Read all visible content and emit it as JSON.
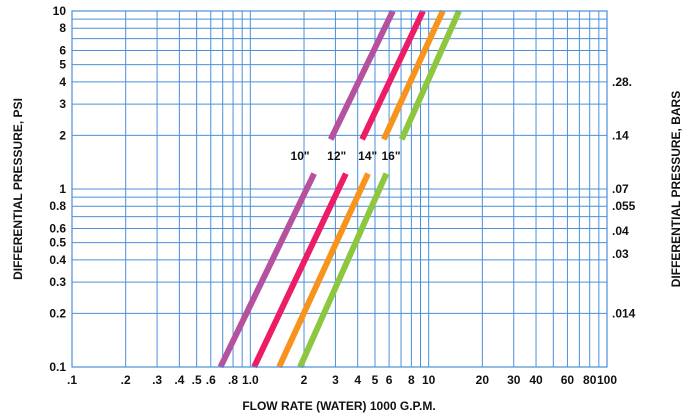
{
  "chart_data": {
    "type": "line",
    "title": "",
    "xlabel": "FLOW RATE (WATER) 1000 G.P.M.",
    "ylabel": "DIFFERENTIAL PRESSURE, PSI",
    "ylabel_right": "DIFFERENTIAL PRESSURE, BARS",
    "x_scale": "log",
    "y_scale": "log",
    "xlim": [
      0.1,
      100
    ],
    "ylim": [
      0.1,
      10
    ],
    "grid": true,
    "x_ticks": [
      {
        "value": 0.1,
        "label": ".1"
      },
      {
        "value": 0.2,
        "label": ".2"
      },
      {
        "value": 0.3,
        "label": ".3"
      },
      {
        "value": 0.4,
        "label": ".4"
      },
      {
        "value": 0.5,
        "label": ".5"
      },
      {
        "value": 0.6,
        "label": ".6"
      },
      {
        "value": 0.8,
        "label": ".8"
      },
      {
        "value": 1.0,
        "label": "1.0"
      },
      {
        "value": 2,
        "label": "2"
      },
      {
        "value": 3,
        "label": "3"
      },
      {
        "value": 4,
        "label": "4"
      },
      {
        "value": 5,
        "label": "5"
      },
      {
        "value": 6,
        "label": "6"
      },
      {
        "value": 8,
        "label": "8"
      },
      {
        "value": 10,
        "label": "10"
      },
      {
        "value": 20,
        "label": "20"
      },
      {
        "value": 30,
        "label": "30"
      },
      {
        "value": 40,
        "label": "40"
      },
      {
        "value": 60,
        "label": "60"
      },
      {
        "value": 80,
        "label": "80"
      },
      {
        "value": 100,
        "label": "100"
      }
    ],
    "y_ticks": [
      {
        "value": 0.1,
        "label": "0.1"
      },
      {
        "value": 0.2,
        "label": "0.2"
      },
      {
        "value": 0.3,
        "label": "0.3"
      },
      {
        "value": 0.4,
        "label": "0.4"
      },
      {
        "value": 0.5,
        "label": "0.5"
      },
      {
        "value": 0.6,
        "label": "0.6"
      },
      {
        "value": 0.8,
        "label": "0.8"
      },
      {
        "value": 1,
        "label": "1"
      },
      {
        "value": 2,
        "label": "2"
      },
      {
        "value": 3,
        "label": "3"
      },
      {
        "value": 4,
        "label": "4"
      },
      {
        "value": 5,
        "label": "5"
      },
      {
        "value": 6,
        "label": "6"
      },
      {
        "value": 8,
        "label": "8"
      },
      {
        "value": 10,
        "label": "10"
      }
    ],
    "right_ticks": [
      {
        "value": 4,
        "label": ".28."
      },
      {
        "value": 2,
        "label": ".14"
      },
      {
        "value": 1,
        "label": ".07"
      },
      {
        "value": 0.8,
        "label": ".055"
      },
      {
        "value": 0.58,
        "label": ".04"
      },
      {
        "value": 0.43,
        "label": ".03"
      },
      {
        "value": 0.2,
        "label": ".014"
      }
    ],
    "grid_x_values": [
      0.1,
      0.2,
      0.3,
      0.4,
      0.5,
      0.6,
      0.7,
      0.8,
      0.9,
      1,
      2,
      3,
      4,
      5,
      6,
      7,
      8,
      9,
      10,
      20,
      30,
      40,
      50,
      60,
      70,
      80,
      90,
      100
    ],
    "grid_y_values": [
      0.1,
      0.2,
      0.3,
      0.4,
      0.5,
      0.6,
      0.7,
      0.8,
      0.9,
      1,
      2,
      3,
      4,
      5,
      6,
      7,
      8,
      9,
      10
    ],
    "series": [
      {
        "name": "10\"",
        "color": "#b5519f",
        "x": [
          0.68,
          6.3
        ],
        "y": [
          0.1,
          10
        ],
        "gap_y": [
          1.22,
          1.9
        ],
        "label_at": {
          "x": 1.9,
          "y": 1.53
        }
      },
      {
        "name": "12\"",
        "color": "#ed1c66",
        "x": [
          1.05,
          9.3
        ],
        "y": [
          0.1,
          10
        ],
        "gap_y": [
          1.22,
          1.9
        ],
        "label_at": {
          "x": 3.05,
          "y": 1.53
        }
      },
      {
        "name": "14\"",
        "color": "#f7941d",
        "x": [
          1.45,
          12.0
        ],
        "y": [
          0.1,
          10
        ],
        "gap_y": [
          1.22,
          1.9
        ],
        "label_at": {
          "x": 4.55,
          "y": 1.53
        }
      },
      {
        "name": "16\"",
        "color": "#8dc63f",
        "x": [
          1.9,
          14.8
        ],
        "y": [
          0.1,
          10
        ],
        "gap_y": [
          1.22,
          1.9
        ],
        "label_at": {
          "x": 6.15,
          "y": 1.53
        }
      }
    ]
  }
}
